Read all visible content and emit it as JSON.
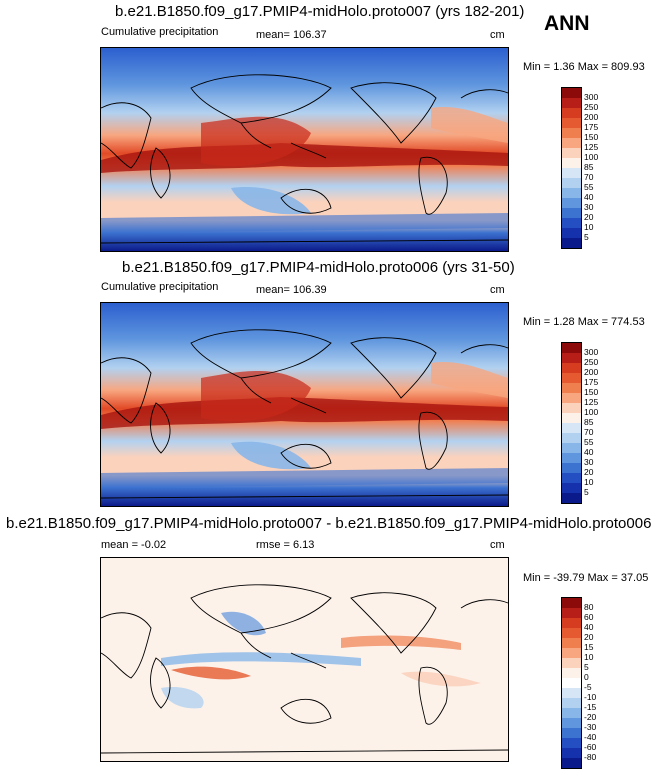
{
  "header": {
    "season": "ANN"
  },
  "panels": [
    {
      "id": "top",
      "title": "b.e21.B1850.f09_g17.PMIP4-midHolo.proto007 (yrs 182-201)",
      "left_label": "Cumulative precipitation",
      "center_label": "mean= 106.37",
      "units": "cm",
      "minmax": "Min =   1.36 Max = 809.93",
      "levels": [
        "300",
        "250",
        "200",
        "175",
        "150",
        "125",
        "100",
        "85",
        "70",
        "55",
        "40",
        "30",
        "20",
        "10",
        "5"
      ],
      "colors": [
        "#8c0a0a",
        "#b81e18",
        "#d63d20",
        "#e55a30",
        "#f07f50",
        "#f8a680",
        "#fbd2bc",
        "#fdf2ea",
        "#d7e6f6",
        "#b2d1f0",
        "#88b6e8",
        "#5f96de",
        "#3c72d0",
        "#244fc2",
        "#1532ac",
        "#0b1a8a"
      ]
    },
    {
      "id": "middle",
      "title": "b.e21.B1850.f09_g17.PMIP4-midHolo.proto006 (yrs 31-50)",
      "left_label": "Cumulative precipitation",
      "center_label": "mean= 106.39",
      "units": "cm",
      "minmax": "Min =   1.28 Max = 774.53",
      "levels": [
        "300",
        "250",
        "200",
        "175",
        "150",
        "125",
        "100",
        "85",
        "70",
        "55",
        "40",
        "30",
        "20",
        "10",
        "5"
      ],
      "colors": [
        "#8c0a0a",
        "#b81e18",
        "#d63d20",
        "#e55a30",
        "#f07f50",
        "#f8a680",
        "#fbd2bc",
        "#fdf2ea",
        "#d7e6f6",
        "#b2d1f0",
        "#88b6e8",
        "#5f96de",
        "#3c72d0",
        "#244fc2",
        "#1532ac",
        "#0b1a8a"
      ]
    },
    {
      "id": "difference",
      "title": "b.e21.B1850.f09_g17.PMIP4-midHolo.proto007 - b.e21.B1850.f09_g17.PMIP4-midHolo.proto006",
      "left_label": "mean =   -0.02",
      "center_label": "rmse =   6.13",
      "units": "cm",
      "minmax": "Min = -39.79 Max =  37.05",
      "levels": [
        "80",
        "60",
        "40",
        "20",
        "15",
        "10",
        "5",
        "0",
        "-5",
        "-10",
        "-15",
        "-20",
        "-30",
        "-40",
        "-60",
        "-80"
      ],
      "colors": [
        "#8c0a0a",
        "#b81e18",
        "#d63d20",
        "#e55a30",
        "#f07f50",
        "#f8a680",
        "#fbd2bc",
        "#fdf2ea",
        "#ffffff",
        "#d7e6f6",
        "#b2d1f0",
        "#88b6e8",
        "#5f96de",
        "#3c72d0",
        "#244fc2",
        "#1532ac",
        "#0b1a8a"
      ]
    }
  ],
  "chart_data": [
    {
      "type": "heatmap",
      "title": "b.e21.B1850.f09_g17.PMIP4-midHolo.proto007 (yrs 182-201)",
      "variable": "Cumulative precipitation",
      "units": "cm",
      "mean": 106.37,
      "min": 1.36,
      "max": 809.93,
      "colorbar_levels": [
        300,
        250,
        200,
        175,
        150,
        125,
        100,
        85,
        70,
        55,
        40,
        30,
        20,
        10,
        5
      ],
      "legend": "right"
    },
    {
      "type": "heatmap",
      "title": "b.e21.B1850.f09_g17.PMIP4-midHolo.proto006 (yrs 31-50)",
      "variable": "Cumulative precipitation",
      "units": "cm",
      "mean": 106.39,
      "min": 1.28,
      "max": 774.53,
      "colorbar_levels": [
        300,
        250,
        200,
        175,
        150,
        125,
        100,
        85,
        70,
        55,
        40,
        30,
        20,
        10,
        5
      ],
      "legend": "right"
    },
    {
      "type": "heatmap",
      "title": "b.e21.B1850.f09_g17.PMIP4-midHolo.proto007 - b.e21.B1850.f09_g17.PMIP4-midHolo.proto006",
      "units": "cm",
      "mean": -0.02,
      "rmse": 6.13,
      "min": -39.79,
      "max": 37.05,
      "colorbar_levels": [
        80,
        60,
        40,
        20,
        15,
        10,
        5,
        0,
        -5,
        -10,
        -15,
        -20,
        -30,
        -40,
        -60,
        -80
      ],
      "legend": "right"
    }
  ]
}
